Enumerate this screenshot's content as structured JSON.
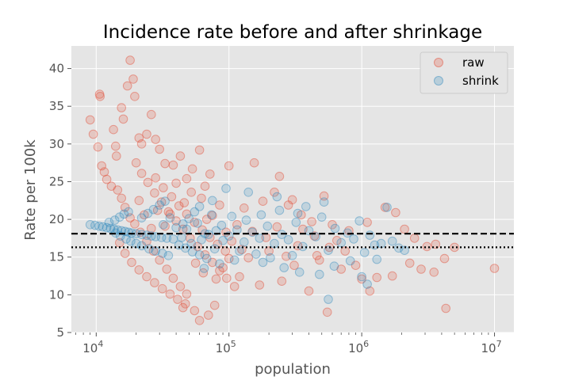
{
  "chart_data": {
    "type": "scatter",
    "title": "Incidence rate before and after shrinkage",
    "xlabel": "population",
    "ylabel": "Rate per 100k",
    "xscale": "log",
    "xlim": [
      6500,
      14000000
    ],
    "ylim": [
      5,
      43
    ],
    "x_ticks": [
      {
        "value": 10000,
        "base": "10",
        "exp": "4"
      },
      {
        "value": 100000,
        "base": "10",
        "exp": "5"
      },
      {
        "value": 1000000,
        "base": "10",
        "exp": "6"
      },
      {
        "value": 10000000,
        "base": "10",
        "exp": "7"
      }
    ],
    "y_ticks": [
      "5",
      "10",
      "15",
      "20",
      "25",
      "30",
      "35",
      "40"
    ],
    "grid": true,
    "legend_position": "top-right",
    "reference_lines": [
      {
        "y": 18.1,
        "style": "dashed",
        "color": "#000000"
      },
      {
        "y": 16.3,
        "style": "dotted",
        "color": "#000000"
      }
    ],
    "series": [
      {
        "name": "raw",
        "color": "#E24A33",
        "points": [
          [
            9000,
            33.2
          ],
          [
            9500,
            31.3
          ],
          [
            10300,
            29.6
          ],
          [
            10600,
            36.6
          ],
          [
            10700,
            36.3
          ],
          [
            11000,
            27.1
          ],
          [
            11500,
            26.3
          ],
          [
            12000,
            25.3
          ],
          [
            13500,
            31.9
          ],
          [
            14000,
            29.7
          ],
          [
            14200,
            28.4
          ],
          [
            15500,
            34.8
          ],
          [
            16000,
            33.3
          ],
          [
            17200,
            37.7
          ],
          [
            18000,
            41.1
          ],
          [
            19000,
            38.6
          ],
          [
            19500,
            36.3
          ],
          [
            21000,
            30.8
          ],
          [
            22000,
            30.0
          ],
          [
            24000,
            31.3
          ],
          [
            26000,
            33.9
          ],
          [
            28000,
            30.6
          ],
          [
            30000,
            29.3
          ],
          [
            33000,
            27.4
          ],
          [
            38000,
            27.2
          ],
          [
            43000,
            28.4
          ],
          [
            48000,
            25.4
          ],
          [
            53000,
            26.7
          ],
          [
            60000,
            29.2
          ],
          [
            66000,
            24.4
          ],
          [
            72000,
            26.0
          ],
          [
            100000,
            27.1
          ],
          [
            155000,
            27.5
          ],
          [
            240000,
            25.7
          ],
          [
            520000,
            23.1
          ],
          [
            300000,
            22.6
          ],
          [
            13000,
            24.4
          ],
          [
            14500,
            23.9
          ],
          [
            15500,
            22.8
          ],
          [
            16500,
            21.6
          ],
          [
            18000,
            20.2
          ],
          [
            19500,
            19.4
          ],
          [
            21500,
            18.3
          ],
          [
            24000,
            17.1
          ],
          [
            27000,
            15.8
          ],
          [
            30000,
            14.6
          ],
          [
            34000,
            13.4
          ],
          [
            38000,
            12.2
          ],
          [
            43000,
            11.1
          ],
          [
            48000,
            10.1
          ],
          [
            20000,
            27.5
          ],
          [
            22000,
            26.1
          ],
          [
            24500,
            24.9
          ],
          [
            27500,
            23.5
          ],
          [
            31000,
            22.3
          ],
          [
            35000,
            21.0
          ],
          [
            40000,
            19.8
          ],
          [
            45000,
            18.7
          ],
          [
            51000,
            17.5
          ],
          [
            58000,
            16.4
          ],
          [
            66000,
            15.3
          ],
          [
            75000,
            14.3
          ],
          [
            85000,
            13.2
          ],
          [
            96000,
            12.2
          ],
          [
            110000,
            11.1
          ],
          [
            28000,
            25.5
          ],
          [
            32000,
            24.2
          ],
          [
            37000,
            23.0
          ],
          [
            42000,
            21.8
          ],
          [
            48000,
            20.7
          ],
          [
            55000,
            19.6
          ],
          [
            63000,
            18.6
          ],
          [
            72000,
            17.6
          ],
          [
            82000,
            16.7
          ],
          [
            94000,
            15.8
          ],
          [
            15000,
            16.9
          ],
          [
            16500,
            15.5
          ],
          [
            18500,
            14.3
          ],
          [
            21000,
            13.3
          ],
          [
            24000,
            12.4
          ],
          [
            27500,
            11.6
          ],
          [
            31500,
            10.8
          ],
          [
            36000,
            10.1
          ],
          [
            41000,
            9.4
          ],
          [
            47000,
            8.8
          ],
          [
            45000,
            8.3
          ],
          [
            55000,
            7.9
          ],
          [
            60000,
            6.6
          ],
          [
            70000,
            7.3
          ],
          [
            78000,
            8.6
          ],
          [
            130000,
            21.5
          ],
          [
            180000,
            22.4
          ],
          [
            220000,
            23.6
          ],
          [
            280000,
            21.9
          ],
          [
            350000,
            20.6
          ],
          [
            420000,
            19.7
          ],
          [
            600000,
            19.3
          ],
          [
            800000,
            18.5
          ],
          [
            1100000,
            19.6
          ],
          [
            1500000,
            21.6
          ],
          [
            1800000,
            20.9
          ],
          [
            2100000,
            18.7
          ],
          [
            2500000,
            17.5
          ],
          [
            3100000,
            16.4
          ],
          [
            3600000,
            16.7
          ],
          [
            4200000,
            14.8
          ],
          [
            4300000,
            8.2
          ],
          [
            5000000,
            16.3
          ],
          [
            10000000,
            13.5
          ],
          [
            3500000,
            13.0
          ],
          [
            2800000,
            13.4
          ],
          [
            2300000,
            14.2
          ],
          [
            1700000,
            12.5
          ],
          [
            1300000,
            12.3
          ],
          [
            1000000,
            12.1
          ],
          [
            1150000,
            10.5
          ],
          [
            900000,
            13.9
          ],
          [
            700000,
            13.4
          ],
          [
            550000,
            7.7
          ],
          [
            400000,
            10.5
          ],
          [
            250000,
            11.8
          ],
          [
            170000,
            11.3
          ],
          [
            120000,
            12.4
          ],
          [
            90000,
            13.6
          ],
          [
            140000,
            14.9
          ],
          [
            200000,
            15.8
          ],
          [
            330000,
            16.5
          ],
          [
            460000,
            15.2
          ],
          [
            650000,
            17.2
          ],
          [
            75000,
            20.5
          ],
          [
            85000,
            21.9
          ],
          [
            95000,
            18.3
          ],
          [
            105000,
            17.1
          ],
          [
            115000,
            19.3
          ],
          [
            62000,
            22.8
          ],
          [
            68000,
            20.0
          ],
          [
            52000,
            23.6
          ],
          [
            46000,
            22.2
          ],
          [
            40000,
            24.8
          ],
          [
            36000,
            20.7
          ],
          [
            33000,
            19.1
          ],
          [
            29000,
            21.2
          ],
          [
            26000,
            18.8
          ],
          [
            23000,
            20.6
          ],
          [
            21000,
            22.5
          ],
          [
            56000,
            14.2
          ],
          [
            64000,
            12.9
          ],
          [
            80000,
            12.1
          ],
          [
            100000,
            14.8
          ],
          [
            125000,
            16.0
          ],
          [
            150000,
            18.4
          ],
          [
            190000,
            17.6
          ],
          [
            230000,
            19.0
          ],
          [
            270000,
            15.1
          ],
          [
            310000,
            13.9
          ],
          [
            360000,
            18.7
          ],
          [
            440000,
            17.8
          ],
          [
            480000,
            14.6
          ],
          [
            570000,
            16.3
          ],
          [
            750000,
            15.8
          ]
        ]
      },
      {
        "name": "shrink",
        "color": "#348ABD",
        "points": [
          [
            9000,
            19.3
          ],
          [
            9800,
            19.2
          ],
          [
            10500,
            19.1
          ],
          [
            11200,
            19.0
          ],
          [
            12000,
            18.9
          ],
          [
            12800,
            18.8
          ],
          [
            13600,
            18.7
          ],
          [
            14500,
            18.6
          ],
          [
            15500,
            18.5
          ],
          [
            16500,
            18.4
          ],
          [
            17500,
            18.3
          ],
          [
            18500,
            18.2
          ],
          [
            20000,
            18.1
          ],
          [
            22000,
            18.0
          ],
          [
            24000,
            17.9
          ],
          [
            26000,
            17.8
          ],
          [
            28000,
            17.7
          ],
          [
            31000,
            17.6
          ],
          [
            34000,
            17.5
          ],
          [
            38000,
            17.4
          ],
          [
            12500,
            19.6
          ],
          [
            13800,
            19.9
          ],
          [
            15000,
            20.3
          ],
          [
            16200,
            20.7
          ],
          [
            17500,
            21.0
          ],
          [
            14000,
            18.2
          ],
          [
            15200,
            17.8
          ],
          [
            16800,
            17.4
          ],
          [
            18200,
            17.1
          ],
          [
            20000,
            16.8
          ],
          [
            22000,
            20.2
          ],
          [
            24500,
            20.8
          ],
          [
            27000,
            21.3
          ],
          [
            30000,
            21.9
          ],
          [
            33000,
            22.4
          ],
          [
            22000,
            16.5
          ],
          [
            25000,
            16.1
          ],
          [
            28000,
            15.8
          ],
          [
            31500,
            15.5
          ],
          [
            35000,
            15.2
          ],
          [
            40000,
            18.9
          ],
          [
            45000,
            19.4
          ],
          [
            50000,
            20.1
          ],
          [
            55000,
            21.0
          ],
          [
            60000,
            21.7
          ],
          [
            42000,
            16.6
          ],
          [
            47000,
            16.2
          ],
          [
            53000,
            15.7
          ],
          [
            60000,
            15.3
          ],
          [
            68000,
            14.8
          ],
          [
            70000,
            18.0
          ],
          [
            80000,
            18.5
          ],
          [
            90000,
            17.2
          ],
          [
            100000,
            17.8
          ],
          [
            115000,
            18.6
          ],
          [
            130000,
            17.0
          ],
          [
            150000,
            18.3
          ],
          [
            170000,
            17.5
          ],
          [
            195000,
            19.1
          ],
          [
            220000,
            16.8
          ],
          [
            250000,
            18.0
          ],
          [
            280000,
            17.3
          ],
          [
            320000,
            19.6
          ],
          [
            360000,
            16.4
          ],
          [
            400000,
            18.5
          ],
          [
            450000,
            17.7
          ],
          [
            500000,
            20.3
          ],
          [
            560000,
            15.9
          ],
          [
            630000,
            18.8
          ],
          [
            700000,
            16.9
          ],
          [
            780000,
            18.2
          ],
          [
            870000,
            17.4
          ],
          [
            960000,
            19.8
          ],
          [
            1050000,
            15.6
          ],
          [
            1150000,
            17.9
          ],
          [
            1250000,
            16.6
          ],
          [
            1400000,
            16.8
          ],
          [
            1550000,
            21.6
          ],
          [
            1700000,
            17.1
          ],
          [
            1900000,
            16.2
          ],
          [
            2100000,
            15.9
          ],
          [
            520000,
            22.3
          ],
          [
            380000,
            21.7
          ],
          [
            230000,
            23.0
          ],
          [
            140000,
            23.6
          ],
          [
            95000,
            24.1
          ],
          [
            75000,
            22.5
          ],
          [
            180000,
            14.3
          ],
          [
            260000,
            13.6
          ],
          [
            340000,
            13.0
          ],
          [
            480000,
            12.7
          ],
          [
            620000,
            13.8
          ],
          [
            820000,
            14.5
          ],
          [
            1000000,
            12.4
          ],
          [
            1100000,
            11.4
          ],
          [
            560000,
            9.4
          ],
          [
            1300000,
            14.7
          ],
          [
            85000,
            14.1
          ],
          [
            110000,
            14.6
          ],
          [
            65000,
            13.5
          ],
          [
            32000,
            19.3
          ],
          [
            36000,
            20.2
          ],
          [
            44000,
            17.6
          ],
          [
            48000,
            18.7
          ],
          [
            52000,
            16.8
          ],
          [
            58000,
            19.5
          ],
          [
            62000,
            17.3
          ],
          [
            66000,
            18.1
          ],
          [
            74000,
            20.6
          ],
          [
            78000,
            16.1
          ],
          [
            88000,
            19.2
          ],
          [
            105000,
            20.4
          ],
          [
            120000,
            15.8
          ],
          [
            135000,
            19.9
          ],
          [
            160000,
            15.4
          ],
          [
            175000,
            20.6
          ],
          [
            205000,
            14.9
          ],
          [
            240000,
            21.2
          ],
          [
            300000,
            15.2
          ],
          [
            330000,
            20.8
          ]
        ]
      }
    ]
  }
}
